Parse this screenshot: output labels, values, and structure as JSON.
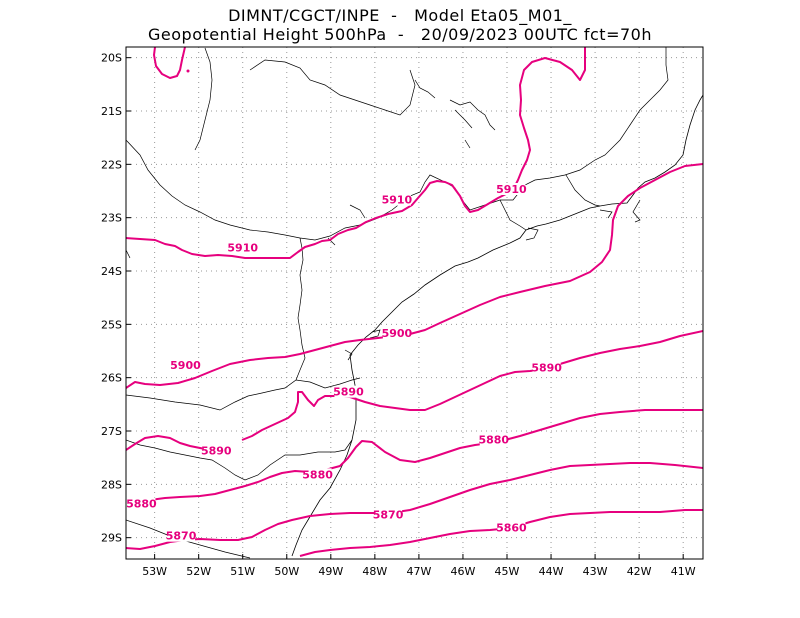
{
  "title_line1": "DIMNT/CGCT/INPE  -   Model Eta05_M01_",
  "title_line2": "Geopotential Height 500hPa  -   20/09/2023 00UTC fct=70h",
  "line_color": "#e6007e",
  "map": {
    "lon_range": [
      -53.65,
      -40.55
    ],
    "lat_range": [
      -29.4,
      -19.8
    ],
    "lon_ticks": [
      {
        "value": -53,
        "label": "53W"
      },
      {
        "value": -52,
        "label": "52W"
      },
      {
        "value": -51,
        "label": "51W"
      },
      {
        "value": -50,
        "label": "50W"
      },
      {
        "value": -49,
        "label": "49W"
      },
      {
        "value": -48,
        "label": "48W"
      },
      {
        "value": -47,
        "label": "47W"
      },
      {
        "value": -46,
        "label": "46W"
      },
      {
        "value": -45,
        "label": "45W"
      },
      {
        "value": -44,
        "label": "44W"
      },
      {
        "value": -43,
        "label": "43W"
      },
      {
        "value": -42,
        "label": "42W"
      },
      {
        "value": -41,
        "label": "41W"
      }
    ],
    "lat_ticks": [
      {
        "value": -20,
        "label": "20S"
      },
      {
        "value": -21,
        "label": "21S"
      },
      {
        "value": -22,
        "label": "22S"
      },
      {
        "value": -23,
        "label": "23S"
      },
      {
        "value": -24,
        "label": "24S"
      },
      {
        "value": -25,
        "label": "25S"
      },
      {
        "value": -26,
        "label": "26S"
      },
      {
        "value": -27,
        "label": "27S"
      },
      {
        "value": -28,
        "label": "28S"
      },
      {
        "value": -29,
        "label": "29S"
      }
    ],
    "contour_labels": [
      {
        "text": "5910",
        "lon": -51.0,
        "lat": -23.6
      },
      {
        "text": "5910",
        "lon": -47.5,
        "lat": -22.7
      },
      {
        "text": "5910",
        "lon": -44.9,
        "lat": -22.5
      },
      {
        "text": "5900",
        "lon": -52.3,
        "lat": -25.8
      },
      {
        "text": "5900",
        "lon": -47.5,
        "lat": -25.2
      },
      {
        "text": "5890",
        "lon": -44.1,
        "lat": -25.85
      },
      {
        "text": "5890",
        "lon": -51.6,
        "lat": -27.4
      },
      {
        "text": "5890",
        "lon": -48.6,
        "lat": -26.3
      },
      {
        "text": "5880",
        "lon": -45.3,
        "lat": -27.2
      },
      {
        "text": "5880",
        "lon": -49.3,
        "lat": -27.85
      },
      {
        "text": "5880",
        "lon": -53.3,
        "lat": -28.4
      },
      {
        "text": "5870",
        "lon": -47.7,
        "lat": -28.6
      },
      {
        "text": "5870",
        "lon": -52.4,
        "lat": -29.0
      },
      {
        "text": "5860",
        "lon": -44.9,
        "lat": -28.85
      }
    ]
  }
}
